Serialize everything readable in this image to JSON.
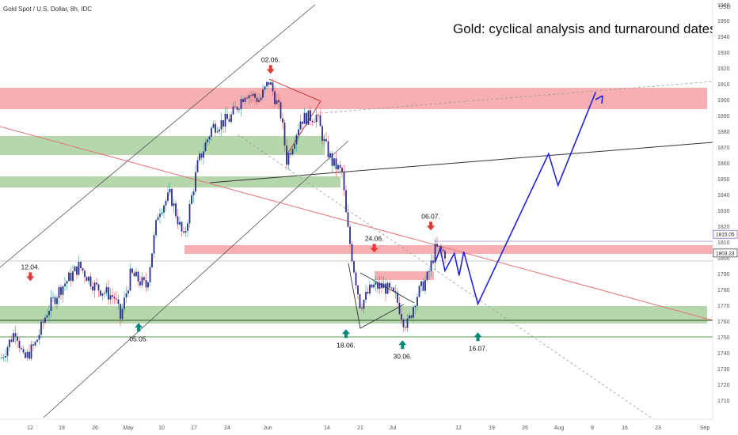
{
  "header": {
    "symbol": "Gold Spot / U.S. Dollar, 8h, IDC",
    "currency": "USD",
    "title": "Gold: cyclical analysis and turnaround dates"
  },
  "colors": {
    "bull": "#26a69a",
    "bear": "#ef5350",
    "candle_body": "#2a2e8a",
    "projection": "#2323d8",
    "red_zone": "#f7a1a6",
    "green_zone": "#a9cf9e",
    "arrow_red": "#e53935",
    "arrow_green": "#00897b"
  },
  "chart_data": {
    "type": "candlestick",
    "title": "Gold: cyclical analysis and turnaround dates",
    "ylim": [
      1703,
      1967
    ],
    "y_ticks": [
      1710,
      1720,
      1730,
      1740,
      1750,
      1760,
      1770,
      1780,
      1790,
      1800,
      1810,
      1820,
      1830,
      1840,
      1850,
      1860,
      1870,
      1880,
      1890,
      1900,
      1910,
      1920,
      1930,
      1940,
      1950,
      1960
    ],
    "x_ticks": [
      "12",
      "19",
      "26",
      "May",
      "10",
      "17",
      "24",
      "Jun",
      "14",
      "21",
      "Jul",
      "12",
      "19",
      "26",
      "Aug",
      "9",
      "16",
      "23",
      "Sep"
    ],
    "price_labels": [
      {
        "value": 1815.05,
        "text": "1815.05"
      },
      {
        "value": 1803.23,
        "text": "1803.23"
      }
    ],
    "zones": [
      {
        "color": "red",
        "from": 1897,
        "to": 1910
      },
      {
        "color": "green",
        "from": 1867,
        "to": 1879
      },
      {
        "color": "green",
        "from": 1849,
        "to": 1856
      },
      {
        "color": "red",
        "from": 1808,
        "to": 1813
      },
      {
        "color": "red",
        "from": 1792,
        "to": 1797
      },
      {
        "color": "green",
        "from": 1765,
        "to": 1776
      }
    ],
    "annotations": [
      {
        "text": "12.04.",
        "dir": "down",
        "color": "red",
        "date": "12.04.",
        "price": 1788
      },
      {
        "text": "05.05.",
        "dir": "up",
        "color": "green",
        "date": "05.05.",
        "price": 1756
      },
      {
        "text": "02.06.",
        "dir": "down",
        "color": "red",
        "date": "02.06.",
        "price": 1919
      },
      {
        "text": "24.06.",
        "dir": "down",
        "color": "red",
        "date": "24.06.",
        "price": 1806
      },
      {
        "text": "18.06.",
        "dir": "up",
        "color": "green",
        "date": "18.06.",
        "price": 1752
      },
      {
        "text": "06.07.",
        "dir": "down",
        "color": "red",
        "date": "06.07.",
        "price": 1820
      },
      {
        "text": "30.06.",
        "dir": "up",
        "color": "green",
        "date": "30.06.",
        "price": 1745
      },
      {
        "text": "16.07.",
        "dir": "up",
        "color": "green",
        "date": "16.07.",
        "price": 1750
      }
    ],
    "projection_path": [
      {
        "date": "07.07.",
        "price": 1798
      },
      {
        "date": "08.07.",
        "price": 1806
      },
      {
        "date": "09.07.",
        "price": 1792
      },
      {
        "date": "11.07.",
        "price": 1803
      },
      {
        "date": "12.07.",
        "price": 1789
      },
      {
        "date": "13.07.",
        "price": 1804
      },
      {
        "date": "16.07.",
        "price": 1771
      },
      {
        "date": "31.07.",
        "price": 1866
      },
      {
        "date": "02.08.",
        "price": 1846
      },
      {
        "date": "10.08.",
        "price": 1905
      }
    ]
  }
}
